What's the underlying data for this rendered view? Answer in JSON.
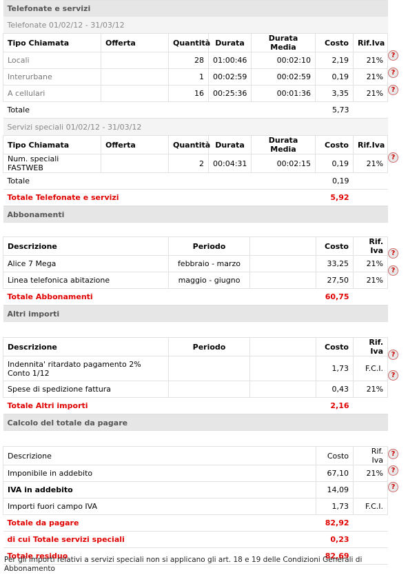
{
  "telefonate": {
    "title": "Telefonate e servizi",
    "period": "Telefonate 01/02/12 - 31/03/12",
    "headers": [
      "Tipo Chiamata",
      "Offerta",
      "Quantità",
      "Durata",
      "Durata Media",
      "Costo",
      "Rif.Iva"
    ],
    "rows": [
      {
        "tipo": "Locali",
        "offerta": "",
        "quantita": "28",
        "durata": "01:00:46",
        "media": "00:02:10",
        "costo": "2,19",
        "iva": "21%"
      },
      {
        "tipo": "Interurbane",
        "offerta": "",
        "quantita": "1",
        "durata": "00:02:59",
        "media": "00:02:59",
        "costo": "0,19",
        "iva": "21%"
      },
      {
        "tipo": "A cellulari",
        "offerta": "",
        "quantita": "16",
        "durata": "00:25:36",
        "media": "00:01:36",
        "costo": "3,35",
        "iva": "21%"
      }
    ],
    "totale_label": "Totale",
    "totale": "5,73",
    "speciali_period": "Servizi speciali 01/02/12 - 31/03/12",
    "speciali_rows": [
      {
        "tipo": "Num. speciali FASTWEB",
        "offerta": "",
        "quantita": "2",
        "durata": "00:04:31",
        "media": "00:02:15",
        "costo": "0,19",
        "iva": "21%"
      }
    ],
    "speciali_totale": "0,19",
    "grand_total_label": "Totale Telefonate e servizi",
    "grand_total": "5,92"
  },
  "abbonamenti": {
    "title": "Abbonamenti",
    "headers": [
      "Descrizione",
      "Periodo",
      "Costo",
      "Rif. Iva"
    ],
    "rows": [
      {
        "desc": "Alice 7 Mega",
        "periodo": "febbraio - marzo",
        "costo": "33,25",
        "iva": "21%"
      },
      {
        "desc": "Linea telefonica abitazione",
        "periodo": "maggio - giugno",
        "costo": "27,50",
        "iva": "21%"
      }
    ],
    "total_label": "Totale Abbonamenti",
    "total": "60,75"
  },
  "altri": {
    "title": "Altri importi",
    "headers": [
      "Descrizione",
      "Periodo",
      "Costo",
      "Rif. Iva"
    ],
    "rows": [
      {
        "desc": "Indennita' ritardato pagamento 2% Conto 1/12",
        "periodo": "",
        "costo": "1,73",
        "iva": "F.C.I."
      },
      {
        "desc": "Spese di spedizione fattura",
        "periodo": "",
        "costo": "0,43",
        "iva": "21%"
      }
    ],
    "total_label": "Totale Altri importi",
    "total": "2,16"
  },
  "calcolo": {
    "title": "Calcolo del totale da pagare",
    "headers": [
      "Descrizione",
      "Costo",
      "Rif. Iva"
    ],
    "rows": [
      {
        "desc": "Imponibile in addebito",
        "costo": "67,10",
        "iva": "21%"
      },
      {
        "desc": "IVA in addebito",
        "costo": "14,09",
        "iva": ""
      },
      {
        "desc": "Importi fuori campo IVA",
        "costo": "1,73",
        "iva": "F.C.I."
      }
    ],
    "totale_pagare_label": "Totale da pagare",
    "totale_pagare": "82,92",
    "speciali_label": "di cui Totale servizi speciali",
    "speciali": "0,23",
    "residuo_label": "Totale residuo",
    "residuo": "82,69"
  },
  "help_icon_glyph": "?",
  "footnote": "Per gli importi relativi a servizi speciali non si applicano gli art. 18 e 19 delle Condizioni Generali di Abbonamento",
  "colors": {
    "total_red": "#e00000",
    "section_bg": "#e6e6e6",
    "subheader_bg": "#f4f4f4"
  }
}
